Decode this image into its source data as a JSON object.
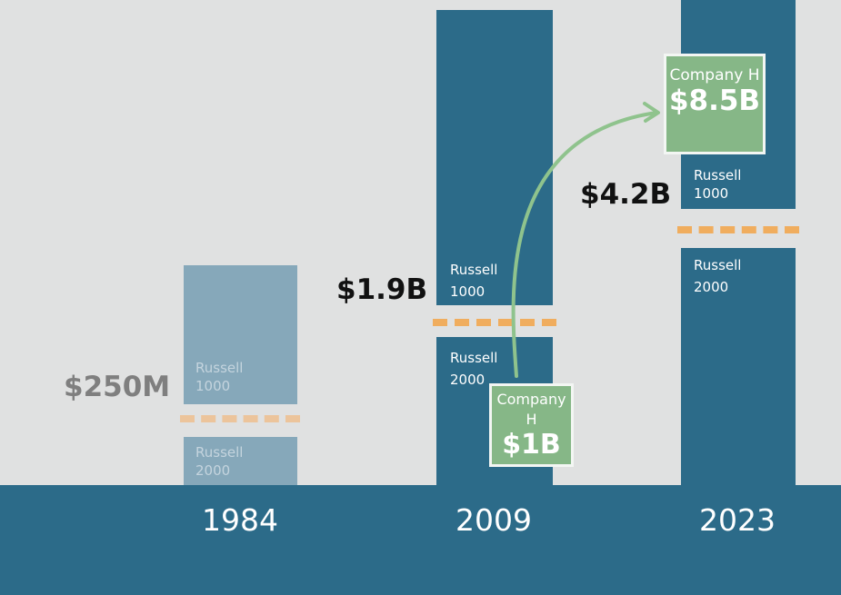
{
  "columns": [
    {
      "year": "1984",
      "upper_label": "Russell 1000",
      "lower_label": "Russell 2000",
      "threshold": "$250M"
    },
    {
      "year": "2009",
      "upper_label": "Russell 1000",
      "lower_label": "Russell 2000",
      "threshold": "$1.9B"
    },
    {
      "year": "2023",
      "upper_label": "Russell 1000",
      "lower_label": "Russell 2000",
      "threshold": "$4.2B"
    }
  ],
  "company_start": {
    "name": "Company H",
    "value": "$1B"
  },
  "company_end": {
    "name": "Company H",
    "value": "$8.5B"
  },
  "colors": {
    "background": "#e0e1e1",
    "bar": "#2c6b89",
    "bar_faded": "#86a8ba",
    "threshold_line": "#f0ad5e",
    "company_box": "#86b787",
    "arrow": "#8fc38d"
  }
}
